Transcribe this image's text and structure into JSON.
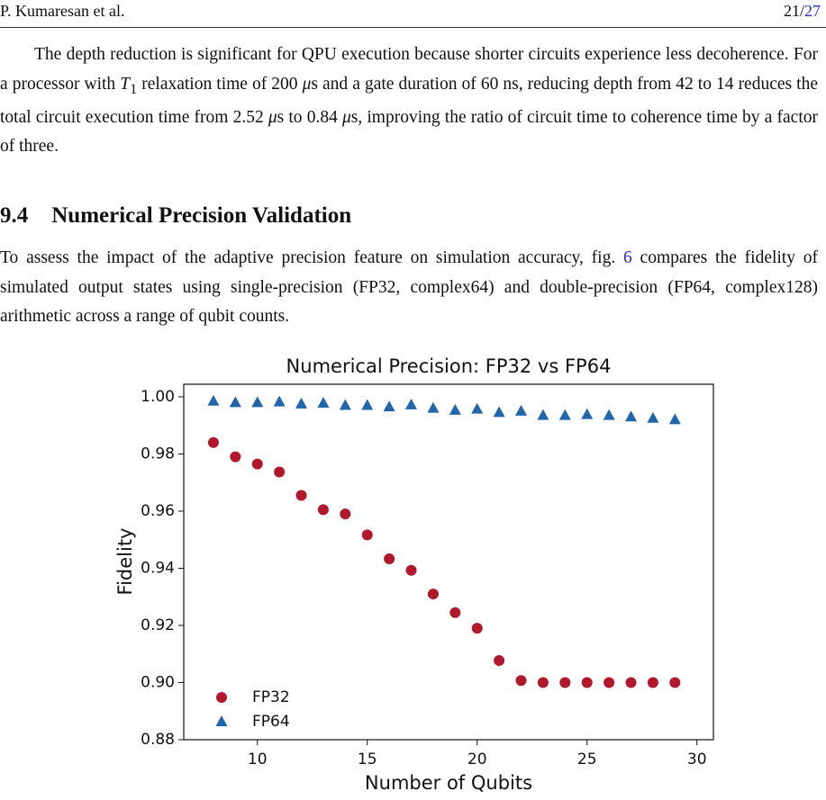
{
  "header": {
    "author": "P. Kumaresan et al.",
    "page": "21/",
    "total": "27"
  },
  "paragraph1": [
    "The depth reduction is significant for QPU execution because shorter circuits experience less decoherence. For a processor with ",
    "T",
    "1",
    " relaxation time of 200 ",
    "μ",
    "s and a gate duration of 60 ns, reducing depth from 42 to 14 reduces the total circuit execution time from 2.52 ",
    "μ",
    "s to 0.84 ",
    "μ",
    "s, improving the ratio of circuit time to coherence time by a factor of three."
  ],
  "section": {
    "number": "9.4",
    "title": "Numerical Precision Validation"
  },
  "paragraph2": [
    "To assess the impact of the adaptive precision feature on simulation accuracy, fig. ",
    "6",
    " compares the fidelity of simulated output states using single-precision (FP32, complex64) and double-precision (FP64, complex128) arithmetic across a range of qubit counts."
  ],
  "chart_data": {
    "type": "scatter",
    "title": "Numerical Precision: FP32 vs FP64",
    "xlabel": "Number of Qubits",
    "ylabel": "Fidelity",
    "x": [
      8,
      9,
      10,
      11,
      12,
      13,
      14,
      15,
      16,
      17,
      18,
      19,
      20,
      21,
      22,
      23,
      24,
      25,
      26,
      27,
      28,
      29
    ],
    "series": [
      {
        "name": "FP32",
        "color": "#b2182b",
        "marker": "circle",
        "values": [
          0.984,
          0.979,
          0.9765,
          0.9737,
          0.9655,
          0.9605,
          0.959,
          0.9517,
          0.9433,
          0.9393,
          0.931,
          0.9245,
          0.919,
          0.9077,
          0.9007,
          0.9,
          0.9,
          0.9,
          0.9,
          0.9,
          0.9,
          0.9
        ]
      },
      {
        "name": "FP64",
        "color": "#2166ac",
        "marker": "triangle",
        "values": [
          0.9985,
          0.998,
          0.998,
          0.9982,
          0.9975,
          0.9978,
          0.997,
          0.997,
          0.9965,
          0.9972,
          0.996,
          0.9953,
          0.9957,
          0.9945,
          0.995,
          0.9935,
          0.9935,
          0.9938,
          0.9935,
          0.993,
          0.9925,
          0.992
        ]
      }
    ],
    "xlim": [
      6.65,
      30.75
    ],
    "ylim": [
      0.88,
      1.0044
    ],
    "xticks": [
      10,
      15,
      20,
      25,
      30
    ],
    "yticks": [
      {
        "value": 0.88,
        "label": "0.88"
      },
      {
        "value": 0.9,
        "label": "0.90"
      },
      {
        "value": 0.92,
        "label": "0.92"
      },
      {
        "value": 0.94,
        "label": "0.94"
      },
      {
        "value": 0.96,
        "label": "0.96"
      },
      {
        "value": 0.98,
        "label": "0.98"
      },
      {
        "value": 1.0,
        "label": "1.00"
      }
    ],
    "legend": "lower left"
  }
}
